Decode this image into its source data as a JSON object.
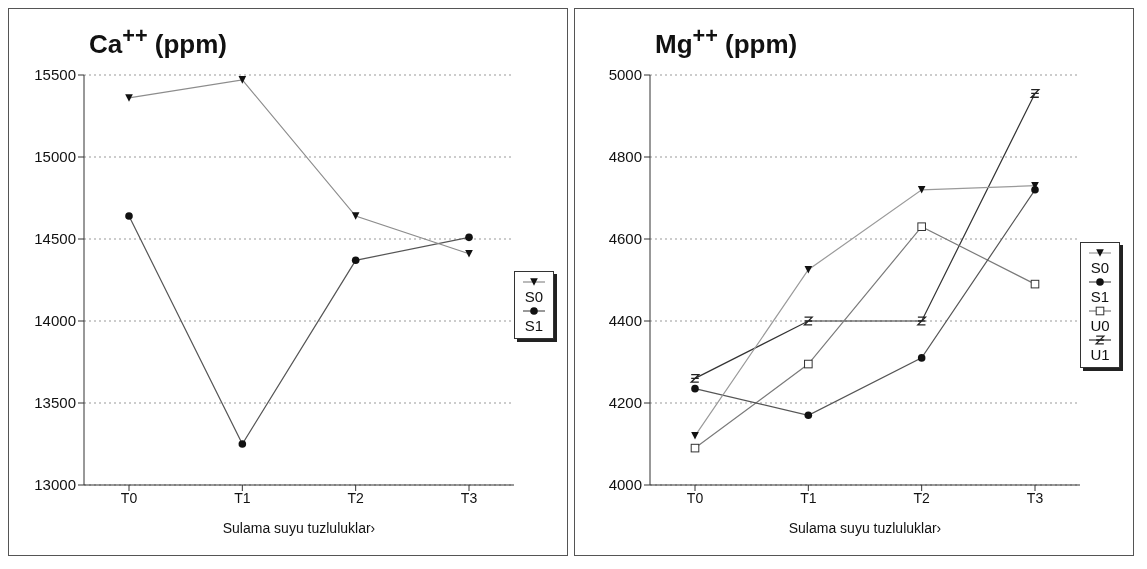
{
  "chart_data": [
    {
      "type": "line",
      "title": "Ca$^{++}$  (ppm)",
      "xlabel": "Sulama suyu tuzluluklar›",
      "categories": [
        "T0",
        "T1",
        "T2",
        "T3"
      ],
      "ylim": [
        13000,
        15500
      ],
      "yticks": [
        13000,
        13500,
        14000,
        14500,
        15000,
        15500
      ],
      "grid": "y",
      "legend": "right",
      "series": [
        {
          "name": "S0",
          "color": "#8c8c8c",
          "marker": "triangle",
          "values": [
            15360,
            15470,
            14640,
            14410
          ]
        },
        {
          "name": "S1",
          "color": "#555555",
          "marker": "circle",
          "values": [
            14640,
            13250,
            14370,
            14510
          ]
        }
      ]
    },
    {
      "type": "line",
      "title": "Mg$^{++}$  (ppm)",
      "xlabel": "Sulama suyu tuzluluklar›",
      "categories": [
        "T0",
        "T1",
        "T2",
        "T3"
      ],
      "ylim": [
        4000,
        5000
      ],
      "yticks": [
        4000,
        4200,
        4400,
        4600,
        4800,
        5000
      ],
      "grid": "y",
      "legend": "right",
      "series": [
        {
          "name": "S0",
          "color": "#9a9a9a",
          "marker": "triangle",
          "values": [
            4120,
            4525,
            4720,
            4730
          ]
        },
        {
          "name": "S1",
          "color": "#555555",
          "marker": "circle",
          "values": [
            4235,
            4170,
            4310,
            4720
          ]
        },
        {
          "name": "U0",
          "color": "#7a7a7a",
          "marker": "square",
          "values": [
            4090,
            4295,
            4630,
            4490
          ]
        },
        {
          "name": "U1",
          "color": "#333333",
          "marker": "cross",
          "values": [
            4260,
            4400,
            4400,
            4955
          ]
        }
      ]
    }
  ]
}
